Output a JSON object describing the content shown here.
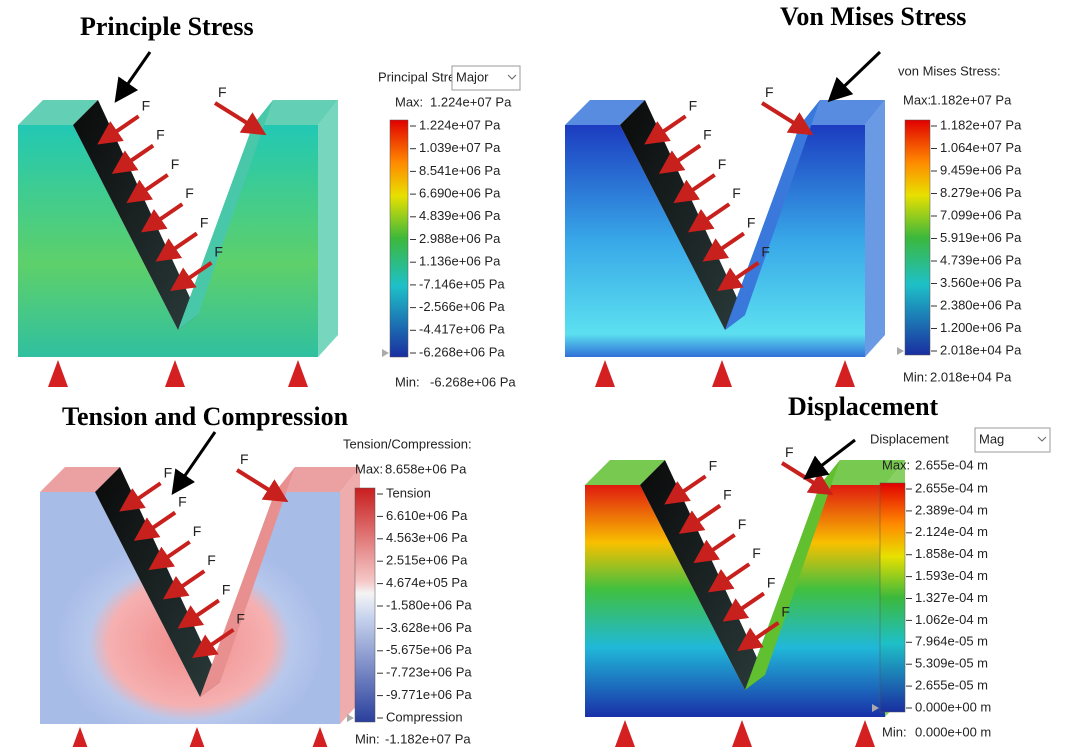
{
  "panels": [
    {
      "title": "Principle Stress",
      "force_label": "F",
      "legend": {
        "header": "Principal Stress:",
        "dropdown": "Major",
        "max_label": "Max:",
        "max_value": "1.224e+07 Pa",
        "ticks": [
          "1.224e+07 Pa",
          "1.039e+07 Pa",
          "8.541e+06 Pa",
          "6.690e+06 Pa",
          "4.839e+06 Pa",
          "2.988e+06 Pa",
          "1.136e+06 Pa",
          "-7.146e+05 Pa",
          "-2.566e+06 Pa",
          "-4.417e+06 Pa",
          "-6.268e+06 Pa"
        ],
        "min_label": "Min:",
        "min_value": "-6.268e+06 Pa"
      }
    },
    {
      "title": "Von Mises Stress",
      "force_label": "F",
      "legend": {
        "header": "von Mises Stress:",
        "max_label": "Max:",
        "max_value": "1.182e+07 Pa",
        "ticks": [
          "1.182e+07 Pa",
          "1.064e+07 Pa",
          "9.459e+06 Pa",
          "8.279e+06 Pa",
          "7.099e+06 Pa",
          "5.919e+06 Pa",
          "4.739e+06 Pa",
          "3.560e+06 Pa",
          "2.380e+06 Pa",
          "1.200e+06 Pa",
          "2.018e+04 Pa"
        ],
        "min_label": "Min:",
        "min_value": "2.018e+04 Pa"
      }
    },
    {
      "title": "Tension and Compression",
      "force_label": "F",
      "legend": {
        "header": "Tension/Compression:",
        "max_label": "Max:",
        "max_value": "8.658e+06 Pa",
        "ticks": [
          "Tension",
          "6.610e+06 Pa",
          "4.563e+06 Pa",
          "2.515e+06 Pa",
          "4.674e+05 Pa",
          "-1.580e+06 Pa",
          "-3.628e+06 Pa",
          "-5.675e+06 Pa",
          "-7.723e+06 Pa",
          "-9.771e+06 Pa",
          "Compression"
        ],
        "min_label": "Min:",
        "min_value": "-1.182e+07 Pa"
      }
    },
    {
      "title": "Displacement",
      "force_label": "F",
      "legend": {
        "header": "Displacement",
        "dropdown": "Mag",
        "max_label": "Max:",
        "max_value": "2.655e-04 m",
        "ticks": [
          "2.655e-04 m",
          "2.389e-04 m",
          "2.124e-04 m",
          "1.858e-04 m",
          "1.593e-04 m",
          "1.327e-04 m",
          "1.062e-04 m",
          "7.964e-05 m",
          "5.309e-05 m",
          "2.655e-05 m",
          "0.000e+00 m"
        ],
        "min_label": "Min:",
        "min_value": "0.000e+00 m"
      }
    }
  ]
}
